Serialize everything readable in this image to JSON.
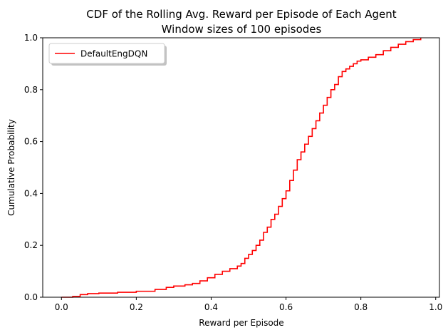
{
  "chart_data": {
    "type": "line",
    "step": true,
    "title": "CDF of the Rolling Avg. Reward per Episode of Each Agent",
    "subtitle": "Window sizes of 100 episodes",
    "xlabel": "Reward per Episode",
    "ylabel": "Cumulative Probability",
    "xlim": [
      -0.05,
      1.01
    ],
    "ylim": [
      0,
      1
    ],
    "xticks": [
      0.0,
      0.2,
      0.4,
      0.6,
      0.8,
      1.0
    ],
    "xtick_labels": [
      "0.0",
      "0.2",
      "0.4",
      "0.6",
      "0.8",
      "1.0"
    ],
    "yticks": [
      0.0,
      0.2,
      0.4,
      0.6,
      0.8,
      1.0
    ],
    "ytick_labels": [
      "0.0",
      "0.2",
      "0.4",
      "0.6",
      "0.8",
      "1.0"
    ],
    "grid": false,
    "legend_position": "top-left",
    "series": [
      {
        "name": "DefaultEngDQN",
        "color": "#ff0000",
        "points": [
          [
            0.0,
            0.0
          ],
          [
            0.03,
            0.003
          ],
          [
            0.05,
            0.01
          ],
          [
            0.07,
            0.014
          ],
          [
            0.1,
            0.016
          ],
          [
            0.15,
            0.019
          ],
          [
            0.2,
            0.023
          ],
          [
            0.25,
            0.03
          ],
          [
            0.28,
            0.038
          ],
          [
            0.3,
            0.043
          ],
          [
            0.33,
            0.048
          ],
          [
            0.35,
            0.053
          ],
          [
            0.37,
            0.063
          ],
          [
            0.39,
            0.075
          ],
          [
            0.41,
            0.088
          ],
          [
            0.43,
            0.1
          ],
          [
            0.45,
            0.11
          ],
          [
            0.47,
            0.12
          ],
          [
            0.48,
            0.13
          ],
          [
            0.49,
            0.15
          ],
          [
            0.5,
            0.165
          ],
          [
            0.51,
            0.18
          ],
          [
            0.52,
            0.2
          ],
          [
            0.53,
            0.22
          ],
          [
            0.54,
            0.25
          ],
          [
            0.55,
            0.27
          ],
          [
            0.56,
            0.3
          ],
          [
            0.57,
            0.32
          ],
          [
            0.58,
            0.35
          ],
          [
            0.59,
            0.38
          ],
          [
            0.6,
            0.41
          ],
          [
            0.61,
            0.45
          ],
          [
            0.62,
            0.49
          ],
          [
            0.63,
            0.53
          ],
          [
            0.64,
            0.56
          ],
          [
            0.65,
            0.59
          ],
          [
            0.66,
            0.62
          ],
          [
            0.67,
            0.65
          ],
          [
            0.68,
            0.68
          ],
          [
            0.69,
            0.71
          ],
          [
            0.7,
            0.74
          ],
          [
            0.71,
            0.77
          ],
          [
            0.72,
            0.8
          ],
          [
            0.73,
            0.82
          ],
          [
            0.74,
            0.85
          ],
          [
            0.75,
            0.87
          ],
          [
            0.76,
            0.88
          ],
          [
            0.77,
            0.89
          ],
          [
            0.78,
            0.9
          ],
          [
            0.79,
            0.91
          ],
          [
            0.8,
            0.915
          ],
          [
            0.82,
            0.925
          ],
          [
            0.84,
            0.935
          ],
          [
            0.86,
            0.95
          ],
          [
            0.88,
            0.963
          ],
          [
            0.9,
            0.975
          ],
          [
            0.92,
            0.985
          ],
          [
            0.94,
            0.993
          ],
          [
            0.96,
            1.0
          ]
        ]
      }
    ]
  }
}
